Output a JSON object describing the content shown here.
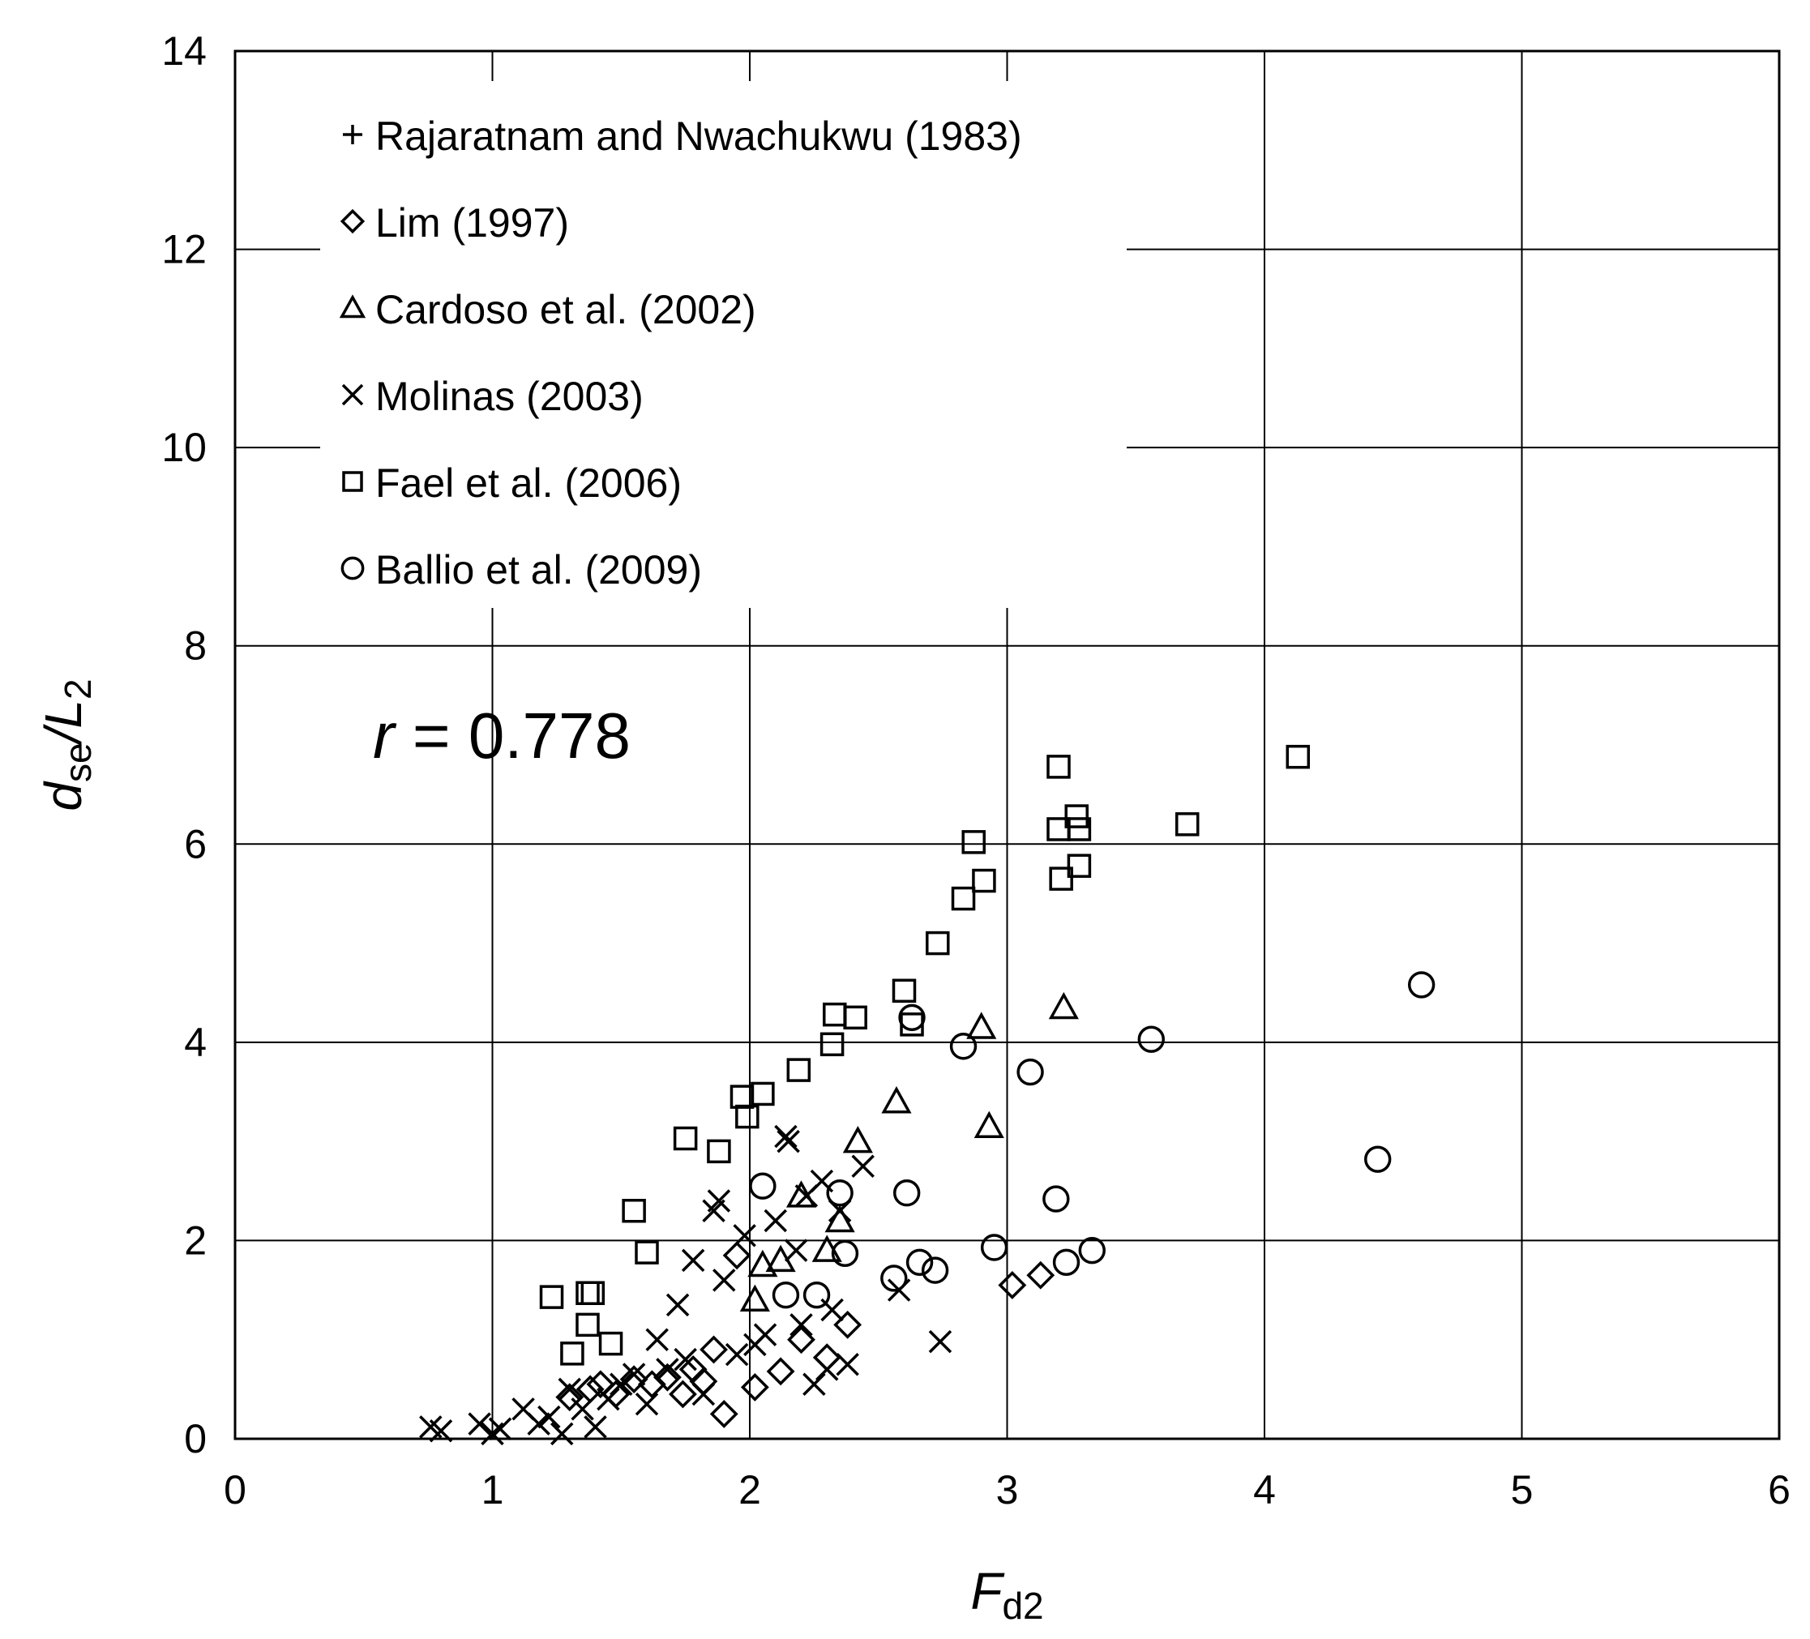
{
  "chart_data": {
    "type": "scatter",
    "xlabel": {
      "main": "F",
      "sub": "d2"
    },
    "ylabel": {
      "main": "d",
      "sub": "se",
      "tail": "/L",
      "tail_sub": "2"
    },
    "xlim": [
      0,
      6
    ],
    "ylim": [
      0,
      14
    ],
    "x_ticks": [
      "0",
      "1",
      "2",
      "3",
      "4",
      "5",
      "6"
    ],
    "y_ticks": [
      "0",
      "2",
      "4",
      "6",
      "8",
      "10",
      "12",
      "14"
    ],
    "grid": true,
    "legend_position": "top-left",
    "annotation": {
      "italic": "r",
      "text": " = 0.778"
    },
    "series": [
      {
        "name": "Rajaratnam and Nwachukwu (1983)",
        "marker": "plus",
        "points": []
      },
      {
        "name": "Lim (1997)",
        "marker": "diamond",
        "points": [
          [
            1.3,
            0.42
          ],
          [
            1.38,
            0.5
          ],
          [
            1.42,
            0.55
          ],
          [
            1.48,
            0.45
          ],
          [
            1.55,
            0.6
          ],
          [
            1.62,
            0.55
          ],
          [
            1.68,
            0.62
          ],
          [
            1.74,
            0.45
          ],
          [
            1.78,
            0.7
          ],
          [
            1.82,
            0.58
          ],
          [
            1.86,
            0.9
          ],
          [
            1.9,
            0.25
          ],
          [
            1.95,
            1.85
          ],
          [
            2.02,
            0.52
          ],
          [
            2.12,
            0.68
          ],
          [
            2.2,
            1.0
          ],
          [
            2.3,
            0.82
          ],
          [
            2.38,
            1.15
          ],
          [
            3.02,
            1.55
          ],
          [
            3.13,
            1.65
          ]
        ]
      },
      {
        "name": "Cardoso et al. (2002)",
        "marker": "triangle",
        "points": [
          [
            2.02,
            1.4
          ],
          [
            2.05,
            1.75
          ],
          [
            2.12,
            1.8
          ],
          [
            2.2,
            2.45
          ],
          [
            2.3,
            1.9
          ],
          [
            2.35,
            2.2
          ],
          [
            2.42,
            3.0
          ],
          [
            2.57,
            3.4
          ],
          [
            2.9,
            4.15
          ],
          [
            2.93,
            3.15
          ],
          [
            3.22,
            4.35
          ]
        ]
      },
      {
        "name": "Molinas (2003)",
        "marker": "x",
        "points": [
          [
            0.76,
            0.12
          ],
          [
            0.8,
            0.08
          ],
          [
            0.95,
            0.15
          ],
          [
            1.0,
            0.05
          ],
          [
            1.03,
            0.1
          ],
          [
            1.12,
            0.3
          ],
          [
            1.18,
            0.15
          ],
          [
            1.22,
            0.22
          ],
          [
            1.27,
            0.05
          ],
          [
            1.3,
            0.5
          ],
          [
            1.35,
            0.3
          ],
          [
            1.4,
            0.12
          ],
          [
            1.45,
            0.4
          ],
          [
            1.5,
            0.55
          ],
          [
            1.55,
            0.65
          ],
          [
            1.6,
            0.35
          ],
          [
            1.64,
            1.0
          ],
          [
            1.68,
            0.7
          ],
          [
            1.72,
            1.35
          ],
          [
            1.75,
            0.8
          ],
          [
            1.78,
            1.8
          ],
          [
            1.82,
            0.45
          ],
          [
            1.86,
            2.3
          ],
          [
            1.88,
            2.4
          ],
          [
            1.9,
            1.6
          ],
          [
            1.95,
            0.85
          ],
          [
            1.98,
            2.05
          ],
          [
            2.02,
            0.95
          ],
          [
            2.06,
            1.05
          ],
          [
            2.1,
            2.2
          ],
          [
            2.14,
            3.05
          ],
          [
            2.15,
            3.0
          ],
          [
            2.18,
            1.9
          ],
          [
            2.2,
            1.15
          ],
          [
            2.22,
            2.45
          ],
          [
            2.25,
            0.55
          ],
          [
            2.28,
            2.6
          ],
          [
            2.3,
            0.7
          ],
          [
            2.32,
            1.3
          ],
          [
            2.35,
            2.3
          ],
          [
            2.38,
            0.75
          ],
          [
            2.44,
            2.75
          ],
          [
            2.58,
            1.5
          ],
          [
            2.74,
            0.98
          ]
        ]
      },
      {
        "name": "Fael et al. (2006)",
        "marker": "square",
        "points": [
          [
            1.23,
            1.43
          ],
          [
            1.31,
            0.86
          ],
          [
            1.37,
            1.15
          ],
          [
            1.37,
            1.47
          ],
          [
            1.39,
            1.47
          ],
          [
            1.46,
            0.96
          ],
          [
            1.55,
            2.3
          ],
          [
            1.6,
            1.88
          ],
          [
            1.75,
            3.03
          ],
          [
            1.88,
            2.9
          ],
          [
            1.97,
            3.45
          ],
          [
            1.99,
            3.25
          ],
          [
            2.05,
            3.48
          ],
          [
            2.19,
            3.72
          ],
          [
            2.32,
            3.98
          ],
          [
            2.33,
            4.28
          ],
          [
            2.41,
            4.25
          ],
          [
            2.6,
            4.52
          ],
          [
            2.63,
            4.18
          ],
          [
            2.73,
            5.0
          ],
          [
            2.83,
            5.45
          ],
          [
            2.87,
            6.02
          ],
          [
            2.91,
            5.63
          ],
          [
            3.2,
            6.78
          ],
          [
            3.2,
            6.15
          ],
          [
            3.21,
            5.65
          ],
          [
            3.27,
            6.28
          ],
          [
            3.28,
            6.15
          ],
          [
            3.28,
            5.78
          ],
          [
            3.7,
            6.2
          ],
          [
            4.13,
            6.88
          ]
        ]
      },
      {
        "name": "Ballio et al. (2009)",
        "marker": "circle",
        "points": [
          [
            2.05,
            2.55
          ],
          [
            2.14,
            1.45
          ],
          [
            2.26,
            1.45
          ],
          [
            2.35,
            2.48
          ],
          [
            2.37,
            1.87
          ],
          [
            2.56,
            1.62
          ],
          [
            2.61,
            2.48
          ],
          [
            2.63,
            4.25
          ],
          [
            2.66,
            1.78
          ],
          [
            2.72,
            1.7
          ],
          [
            2.83,
            3.96
          ],
          [
            2.95,
            1.93
          ],
          [
            3.09,
            3.7
          ],
          [
            3.19,
            2.42
          ],
          [
            3.23,
            1.78
          ],
          [
            3.33,
            1.9
          ],
          [
            3.56,
            4.03
          ],
          [
            4.44,
            2.82
          ],
          [
            4.61,
            4.58
          ]
        ]
      }
    ]
  }
}
